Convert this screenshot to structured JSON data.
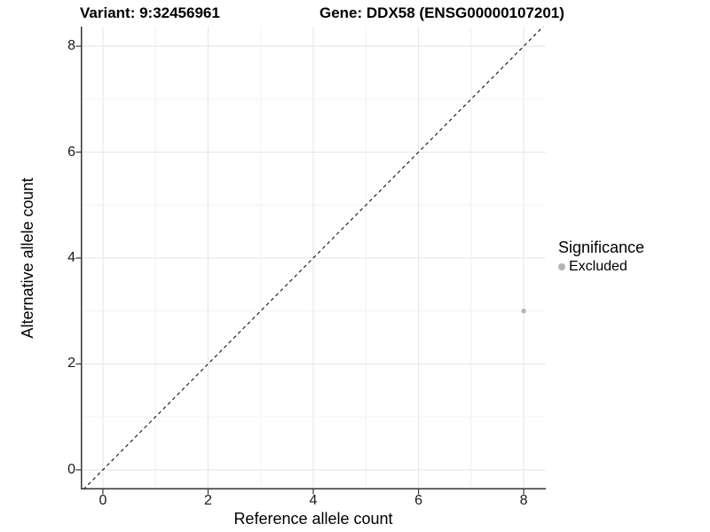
{
  "title": {
    "variant": "Variant: 9:32456961",
    "gene": "Gene: DDX58 (ENSG00000107201)"
  },
  "axes": {
    "x_label": "Reference allele count",
    "y_label": "Alternative allele count"
  },
  "legend": {
    "title": "Significance",
    "items": [
      {
        "label": "Excluded",
        "color": "#b4b4b4"
      }
    ]
  },
  "colors": {
    "background": "#ffffff",
    "axis_line": "#333333",
    "major_grid": "#e7e7e7",
    "minor_grid": "#f2f2f2",
    "reference_line": "#111111",
    "point": "#b4b4b4"
  },
  "chart_data": {
    "type": "scatter",
    "title": "Variant: 9:32456961    Gene: DDX58 (ENSG00000107201)",
    "xlabel": "Reference allele count",
    "ylabel": "Alternative allele count",
    "xlim": [
      -0.42,
      8.42
    ],
    "ylim": [
      -0.37,
      8.37
    ],
    "x_ticks": [
      0,
      2,
      4,
      6,
      8
    ],
    "y_ticks": [
      0,
      2,
      4,
      6,
      8
    ],
    "x_minor_ticks": [
      1,
      3,
      5,
      7
    ],
    "y_minor_ticks": [
      1,
      3,
      5,
      7
    ],
    "grid": true,
    "legend_position": "right",
    "series": [
      {
        "name": "Excluded",
        "color": "#b4b4b4",
        "points": [
          {
            "x": 8,
            "y": 3
          }
        ]
      }
    ],
    "reference_line": {
      "type": "identity",
      "equation": "y = x",
      "style": "dashed",
      "color": "#111111"
    }
  }
}
